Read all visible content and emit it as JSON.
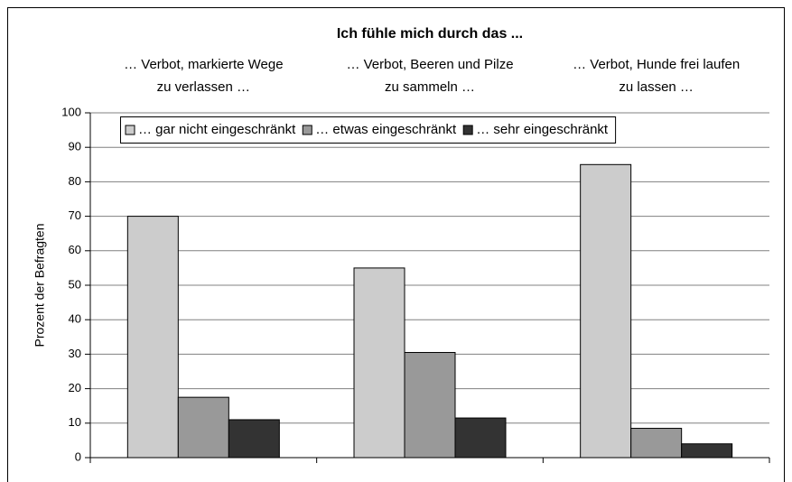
{
  "chart_data": {
    "type": "bar",
    "title": "Ich fühle mich durch das ...",
    "categories": [
      [
        "… Verbot, markierte Wege",
        "zu verlassen …"
      ],
      [
        "… Verbot, Beeren und Pilze",
        "zu sammeln …"
      ],
      [
        "… Verbot, Hunde frei laufen",
        "zu lassen …"
      ]
    ],
    "y_label": "Prozent der Befragten",
    "series": [
      {
        "name": "… gar nicht eingeschränkt",
        "color": "#cccccc",
        "values": [
          70,
          55,
          85
        ]
      },
      {
        "name": "… etwas eingeschränkt",
        "color": "#999999",
        "values": [
          17.5,
          30.5,
          8.5
        ]
      },
      {
        "name": "… sehr eingeschränkt",
        "color": "#333333",
        "values": [
          11,
          11.5,
          4
        ]
      }
    ],
    "ylim": [
      0,
      100
    ],
    "yticks": [
      0,
      10,
      20,
      30,
      40,
      50,
      60,
      70,
      80,
      90,
      100
    ],
    "grid": true,
    "legend": "top"
  }
}
